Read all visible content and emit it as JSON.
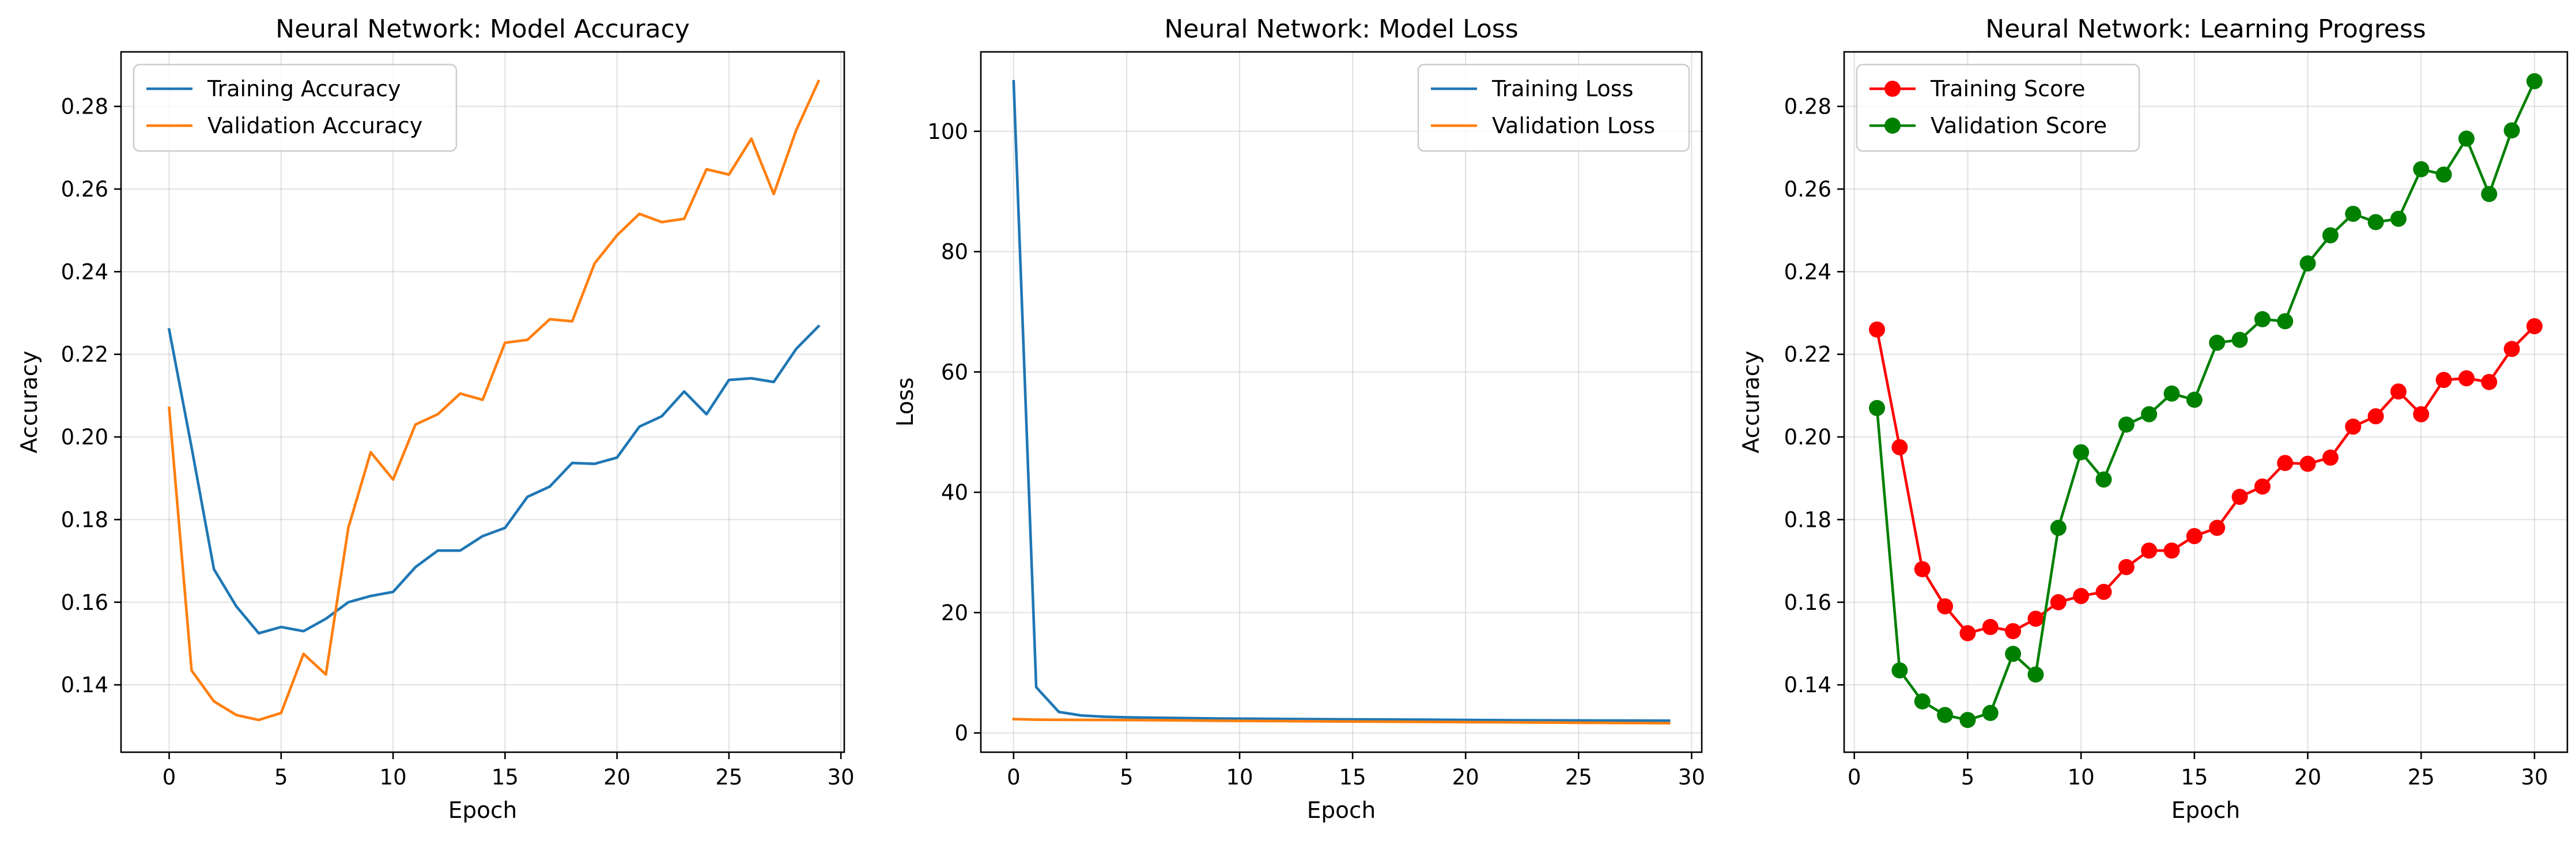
{
  "chart_data": [
    {
      "type": "line",
      "title": "Neural Network: Model Accuracy",
      "xlabel": "Epoch",
      "ylabel": "Accuracy",
      "xlim": [
        -2.15,
        30.15
      ],
      "ylim": [
        0.1237,
        0.2932
      ],
      "xticks": [
        0,
        5,
        10,
        15,
        20,
        25,
        30
      ],
      "yticks": [
        0.14,
        0.16,
        0.18,
        0.2,
        0.22,
        0.24,
        0.26,
        0.28
      ],
      "ytick_labels": [
        "0.14",
        "0.16",
        "0.18",
        "0.20",
        "0.22",
        "0.24",
        "0.26",
        "0.28"
      ],
      "grid": true,
      "legend_position": "upper-left",
      "x": [
        0,
        1,
        2,
        3,
        4,
        5,
        6,
        7,
        8,
        9,
        10,
        11,
        12,
        13,
        14,
        15,
        16,
        17,
        18,
        19,
        20,
        21,
        22,
        23,
        24,
        25,
        26,
        27,
        28,
        29
      ],
      "series": [
        {
          "name": "Training Accuracy",
          "color": "#1f77b4",
          "values": [
            0.226,
            0.1975,
            0.168,
            0.159,
            0.1525,
            0.154,
            0.153,
            0.156,
            0.16,
            0.1615,
            0.1625,
            0.1685,
            0.1725,
            0.1725,
            0.176,
            0.178,
            0.1855,
            0.188,
            0.1937,
            0.1935,
            0.195,
            0.2025,
            0.205,
            0.211,
            0.2055,
            0.2138,
            0.2142,
            0.2133,
            0.2213,
            0.2268
          ]
        },
        {
          "name": "Validation Accuracy",
          "color": "#ff7f0e",
          "values": [
            0.207,
            0.1435,
            0.136,
            0.1327,
            0.1315,
            0.1332,
            0.1475,
            0.1425,
            0.178,
            0.1963,
            0.1897,
            0.203,
            0.2055,
            0.2105,
            0.209,
            0.2228,
            0.2235,
            0.2285,
            0.228,
            0.242,
            0.2488,
            0.254,
            0.252,
            0.2528,
            0.2648,
            0.2635,
            0.2722,
            0.2588,
            0.2742,
            0.2861
          ]
        }
      ]
    },
    {
      "type": "line",
      "title": "Neural Network: Model Loss",
      "xlabel": "Epoch",
      "ylabel": "Loss",
      "xlim": [
        -1.45,
        30.45
      ],
      "ylim": [
        -3.2,
        113.2
      ],
      "xticks": [
        0,
        5,
        10,
        15,
        20,
        25,
        30
      ],
      "yticks": [
        0,
        20,
        40,
        60,
        80,
        100
      ],
      "ytick_labels": [
        "0",
        "20",
        "40",
        "60",
        "80",
        "100"
      ],
      "grid": true,
      "legend_position": "upper-right",
      "x": [
        0,
        1,
        2,
        3,
        4,
        5,
        6,
        7,
        8,
        9,
        10,
        11,
        12,
        13,
        14,
        15,
        16,
        17,
        18,
        19,
        20,
        21,
        22,
        23,
        24,
        25,
        26,
        27,
        28,
        29
      ],
      "series": [
        {
          "name": "Training Loss",
          "color": "#1f77b4",
          "values": [
            108.3,
            7.6,
            3.5,
            2.9,
            2.7,
            2.6,
            2.55,
            2.5,
            2.45,
            2.4,
            2.38,
            2.35,
            2.32,
            2.3,
            2.28,
            2.26,
            2.24,
            2.22,
            2.2,
            2.18,
            2.16,
            2.14,
            2.12,
            2.1,
            2.09,
            2.08,
            2.07,
            2.06,
            2.05,
            2.04
          ]
        },
        {
          "name": "Validation Loss",
          "color": "#ff7f0e",
          "values": [
            2.3,
            2.2,
            2.18,
            2.17,
            2.16,
            2.15,
            2.13,
            2.1,
            2.06,
            2.03,
            2.0,
            1.98,
            1.96,
            1.94,
            1.92,
            1.9,
            1.88,
            1.86,
            1.84,
            1.82,
            1.8,
            1.78,
            1.76,
            1.74,
            1.72,
            1.7,
            1.68,
            1.66,
            1.64,
            1.62
          ]
        }
      ]
    },
    {
      "type": "line",
      "title": "Neural Network: Learning Progress",
      "xlabel": "Epoch",
      "ylabel": "Accuracy",
      "xlim": [
        -0.45,
        31.45
      ],
      "ylim": [
        0.1237,
        0.2932
      ],
      "xticks": [
        0,
        5,
        10,
        15,
        20,
        25,
        30
      ],
      "yticks": [
        0.14,
        0.16,
        0.18,
        0.2,
        0.22,
        0.24,
        0.26,
        0.28
      ],
      "ytick_labels": [
        "0.14",
        "0.16",
        "0.18",
        "0.20",
        "0.22",
        "0.24",
        "0.26",
        "0.28"
      ],
      "grid": true,
      "legend_position": "upper-left",
      "markers": true,
      "x": [
        1,
        2,
        3,
        4,
        5,
        6,
        7,
        8,
        9,
        10,
        11,
        12,
        13,
        14,
        15,
        16,
        17,
        18,
        19,
        20,
        21,
        22,
        23,
        24,
        25,
        26,
        27,
        28,
        29,
        30
      ],
      "series": [
        {
          "name": "Training Score",
          "color": "#ff0000",
          "values": [
            0.226,
            0.1975,
            0.168,
            0.159,
            0.1525,
            0.154,
            0.153,
            0.156,
            0.16,
            0.1615,
            0.1625,
            0.1685,
            0.1725,
            0.1725,
            0.176,
            0.178,
            0.1855,
            0.188,
            0.1937,
            0.1935,
            0.195,
            0.2025,
            0.205,
            0.211,
            0.2055,
            0.2138,
            0.2142,
            0.2133,
            0.2213,
            0.2268
          ]
        },
        {
          "name": "Validation Score",
          "color": "#008000",
          "values": [
            0.207,
            0.1435,
            0.136,
            0.1327,
            0.1315,
            0.1332,
            0.1475,
            0.1425,
            0.178,
            0.1963,
            0.1897,
            0.203,
            0.2055,
            0.2105,
            0.209,
            0.2228,
            0.2235,
            0.2285,
            0.228,
            0.242,
            0.2488,
            0.254,
            0.252,
            0.2528,
            0.2648,
            0.2635,
            0.2722,
            0.2588,
            0.2742,
            0.2861
          ]
        }
      ]
    }
  ]
}
